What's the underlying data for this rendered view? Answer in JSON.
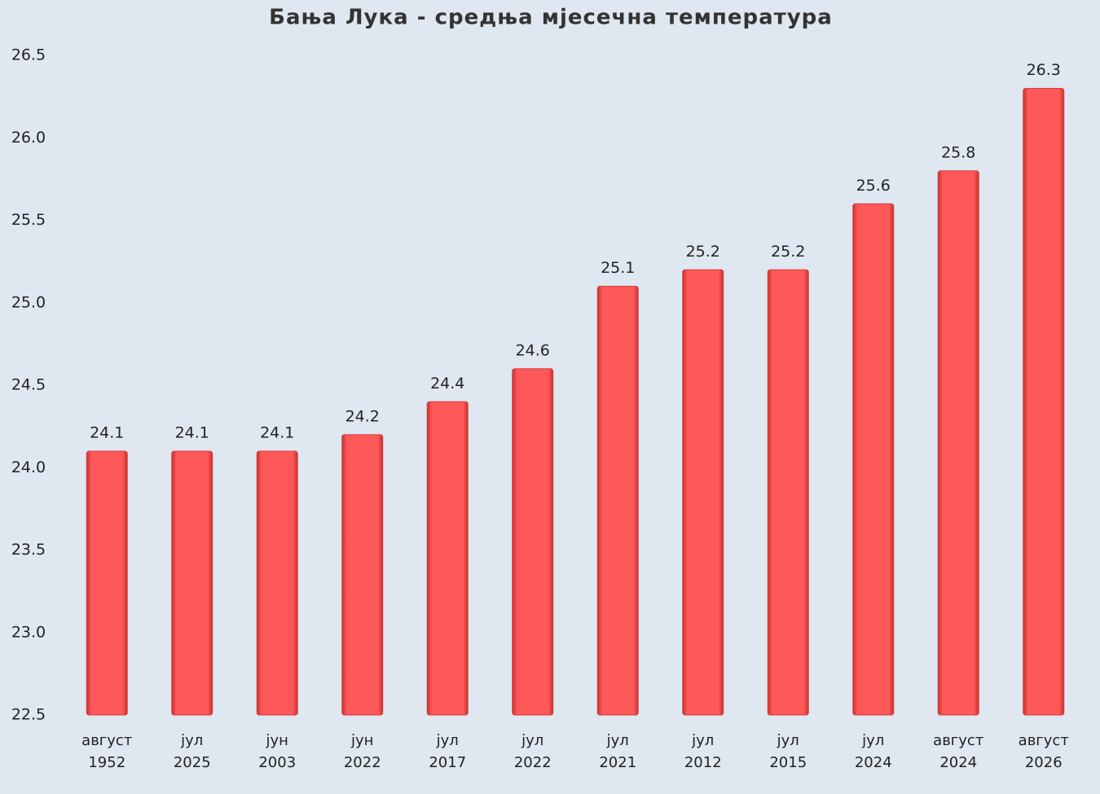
{
  "chart_data": {
    "type": "bar",
    "title": "Бања Лука - средња мјесечна температура",
    "categories": [
      [
        "август",
        "1952"
      ],
      [
        "јул",
        "2025"
      ],
      [
        "јун",
        "2003"
      ],
      [
        "јун",
        "2022"
      ],
      [
        "јул",
        "2017"
      ],
      [
        "јул",
        "2022"
      ],
      [
        "јул",
        "2021"
      ],
      [
        "јул",
        "2012"
      ],
      [
        "јул",
        "2015"
      ],
      [
        "јул",
        "2024"
      ],
      [
        "август",
        "2024"
      ],
      [
        "август",
        "2026"
      ]
    ],
    "values": [
      24.1,
      24.1,
      24.1,
      24.2,
      24.4,
      24.6,
      25.1,
      25.2,
      25.2,
      25.6,
      25.8,
      26.3
    ],
    "color": "#ff5555",
    "ylim": [
      22.5,
      26.5
    ],
    "yticks": [
      22.5,
      {
        "value": 23,
        "label": "23.0"
      },
      23.5,
      {
        "value": 24,
        "label": "24.0"
      },
      24.5,
      {
        "value": 25,
        "label": "25.0"
      },
      25.5,
      {
        "value": 26,
        "label": "26.0"
      },
      26.5
    ],
    "grid": false
  }
}
